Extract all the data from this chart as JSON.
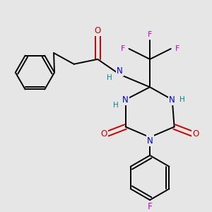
{
  "bg_color": "#e6e6e6",
  "atom_colors": {
    "C": "#000000",
    "N": "#0000cc",
    "O": "#cc0000",
    "F": "#cc00cc",
    "H": "#008888"
  },
  "bond_color": "#000000",
  "bond_width": 1.4,
  "dbo": 0.008,
  "figsize": [
    3.0,
    3.0
  ],
  "dpi": 100
}
